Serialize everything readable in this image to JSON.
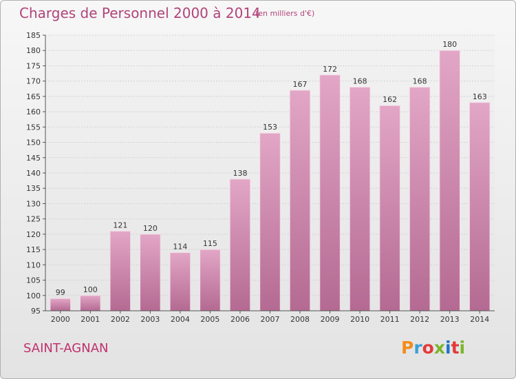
{
  "header": {
    "title": "Charges de Personnel 2000 à 2014",
    "unit": "(en milliers d'€)"
  },
  "footer": {
    "commune": "SAINT-AGNAN",
    "brand_letters": [
      "P",
      "r",
      "o",
      "x",
      "i",
      "t",
      "i"
    ],
    "brand_colors": [
      "#f28c1c",
      "#3aa0d8",
      "#e23a3a",
      "#7ab52b",
      "#1f73c9",
      "#e23a3a",
      "#7ab52b"
    ]
  },
  "chart_data": {
    "type": "bar",
    "title": "Charges de Personnel 2000 à 2014",
    "subtitle": "(en milliers d'€)",
    "categories": [
      "2000",
      "2001",
      "2002",
      "2003",
      "2004",
      "2005",
      "2006",
      "2007",
      "2008",
      "2009",
      "2010",
      "2011",
      "2012",
      "2013",
      "2014"
    ],
    "values": [
      99,
      100,
      121,
      120,
      114,
      115,
      138,
      153,
      167,
      172,
      168,
      162,
      168,
      180,
      163
    ],
    "ylim": [
      95,
      185
    ],
    "yticks": [
      95,
      100,
      105,
      110,
      115,
      120,
      125,
      130,
      135,
      140,
      145,
      150,
      155,
      160,
      165,
      170,
      175,
      180,
      185
    ],
    "grid": true,
    "bar_color": "#d67ba8"
  }
}
